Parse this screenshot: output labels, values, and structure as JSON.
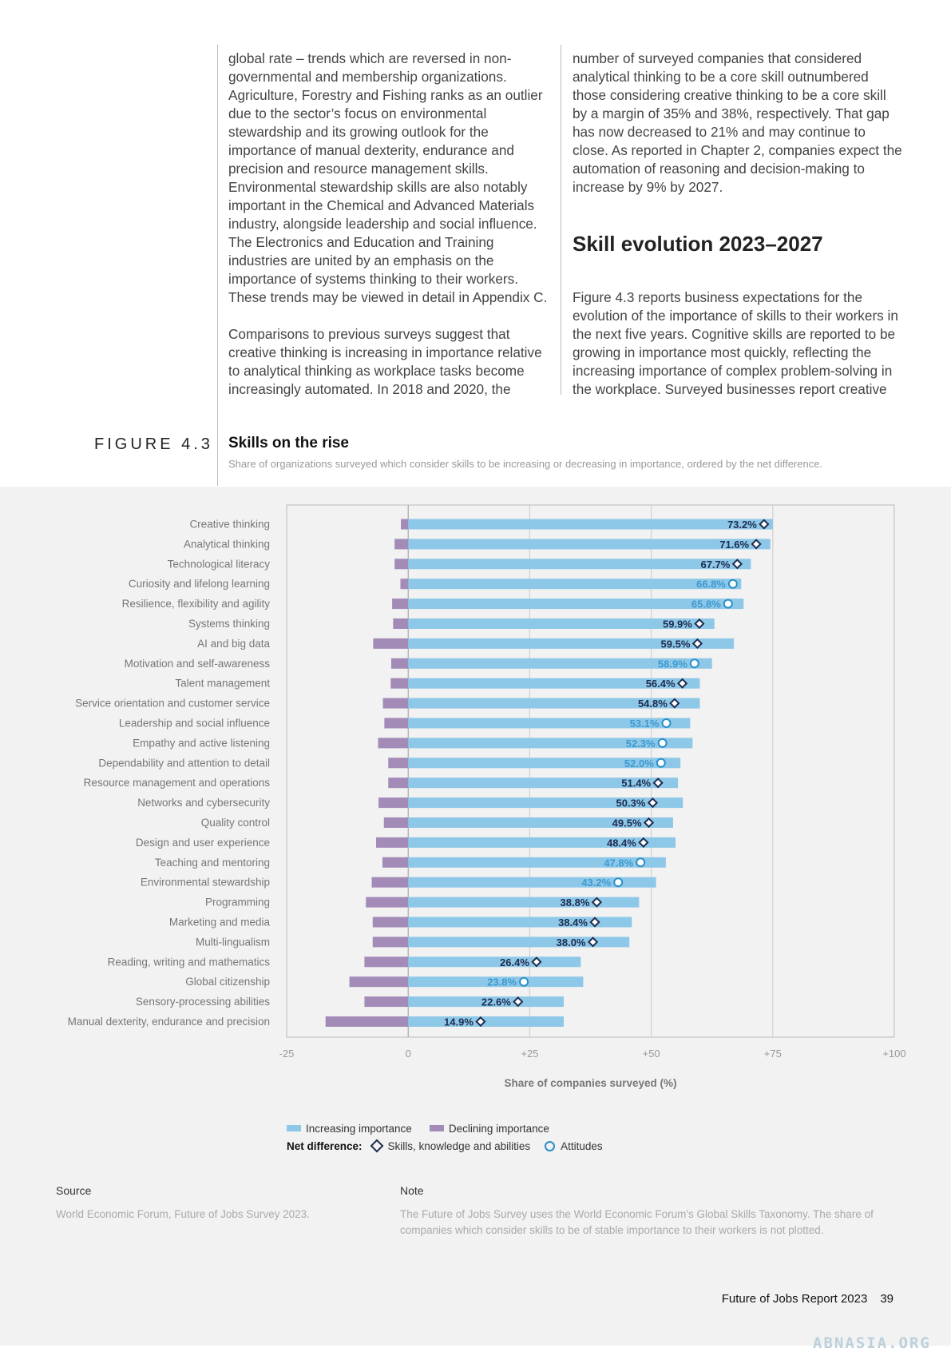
{
  "body_text": {
    "left_p1": "global rate – trends which are reversed in non-governmental and membership organizations. Agriculture, Forestry and Fishing ranks as an outlier due to the sector’s focus on environmental stewardship and its growing outlook for the importance of manual dexterity, endurance and precision and resource management skills. Environmental stewardship skills are also notably important in the Chemical and Advanced Materials industry, alongside leadership and social influence. The Electronics and Education and Training industries are united by an emphasis on the importance of systems thinking to their workers. These trends may be viewed in detail in Appendix C.",
    "left_p2": "Comparisons to previous surveys suggest that creative thinking is increasing in importance relative to analytical thinking as workplace tasks become increasingly automated. In 2018 and 2020, the",
    "right_p1": "number of surveyed companies that considered analytical thinking to be a core skill outnumbered those considering creative thinking to be a core skill by a margin of 35% and 38%, respectively. That gap has now decreased to 21% and may continue to close. As reported in Chapter 2, companies expect the automation of reasoning and decision-making to increase by 9% by 2027.",
    "section_heading": "Skill evolution 2023–2027",
    "right_p2": "Figure 4.3 reports business expectations for the evolution of the importance of skills to their workers in the next five years. Cognitive skills are reported to be growing in importance most quickly, reflecting the increasing importance of complex problem-solving in the workplace. Surveyed businesses report creative"
  },
  "figure": {
    "label": "FIGURE 4.3",
    "title": "Skills on the rise",
    "subtitle": "Share of organizations surveyed which consider skills to be increasing or decreasing in importance, ordered by the net difference."
  },
  "chart_data": {
    "type": "bar",
    "orientation": "horizontal",
    "xlabel": "Share of companies surveyed (%)",
    "xlim": [
      -25,
      100
    ],
    "xticks": [
      "-25",
      "0",
      "+25",
      "+50",
      "+75",
      "+100"
    ],
    "categories": [
      "Creative thinking",
      "Analytical thinking",
      "Technological literacy",
      "Curiosity and lifelong learning",
      "Resilience, flexibility and agility",
      "Systems thinking",
      "AI and big data",
      "Motivation and self-awareness",
      "Talent management",
      "Service orientation and customer service",
      "Leadership and social influence",
      "Empathy and active listening",
      "Dependability and attention to detail",
      "Resource management and operations",
      "Networks and cybersecurity",
      "Quality control",
      "Design and user experience",
      "Teaching and mentoring",
      "Environmental stewardship",
      "Programming",
      "Marketing and media",
      "Multi-lingualism",
      "Reading, writing and mathematics",
      "Global citizenship",
      "Sensory-processing abilities",
      "Manual dexterity, endurance and precision"
    ],
    "series": [
      {
        "name": "Increasing importance",
        "color": "#8ec8e8",
        "values": [
          75,
          74.5,
          70.5,
          68.5,
          69,
          63,
          67,
          62.5,
          60,
          60,
          58,
          58.5,
          56,
          55.5,
          56.5,
          54.5,
          55,
          53,
          51,
          47.5,
          46,
          45.5,
          35.5,
          36,
          32,
          32
        ]
      },
      {
        "name": "Declining importance",
        "color": "#a38bb8",
        "values": [
          -1.5,
          -2.8,
          -2.8,
          -1.6,
          -3.3,
          -3.1,
          -7.2,
          -3.5,
          -3.6,
          -5.2,
          -4.9,
          -6.2,
          -4.1,
          -4.1,
          -6.1,
          -5,
          -6.6,
          -5.3,
          -7.5,
          -8.7,
          -7.3,
          -7.3,
          -9,
          -12.1,
          -9,
          -17
        ]
      },
      {
        "name": "Net difference",
        "values": [
          73.2,
          71.6,
          67.7,
          66.8,
          65.8,
          59.9,
          59.5,
          58.9,
          56.4,
          54.8,
          53.1,
          52.3,
          52.0,
          51.4,
          50.3,
          49.5,
          48.4,
          47.8,
          43.2,
          38.8,
          38.4,
          38.0,
          26.4,
          23.8,
          22.6,
          14.9
        ],
        "labels": [
          "73.2%",
          "71.6%",
          "67.7%",
          "66.8%",
          "65.8%",
          "59.9%",
          "59.5%",
          "58.9%",
          "56.4%",
          "54.8%",
          "53.1%",
          "52.3%",
          "52.0%",
          "51.4%",
          "50.3%",
          "49.5%",
          "48.4%",
          "47.8%",
          "43.2%",
          "38.8%",
          "38.4%",
          "38.0%",
          "26.4%",
          "23.8%",
          "22.6%",
          "14.9%"
        ],
        "marker_type": [
          "skill",
          "skill",
          "skill",
          "attitude",
          "attitude",
          "skill",
          "skill",
          "attitude",
          "skill",
          "skill",
          "attitude",
          "attitude",
          "attitude",
          "skill",
          "skill",
          "skill",
          "skill",
          "attitude",
          "attitude",
          "skill",
          "skill",
          "skill",
          "skill",
          "attitude",
          "skill",
          "skill"
        ]
      }
    ],
    "colors": {
      "skill_marker": "#1e2c4e",
      "attitude_marker": "#2a8fc8",
      "skill_label": "#1e2c4e",
      "attitude_label": "#3d9ad0"
    }
  },
  "legend": {
    "increasing": "Increasing importance",
    "declining": "Declining importance",
    "net_label": "Net difference:",
    "skills": "Skills, knowledge and abilities",
    "attitudes": "Attitudes"
  },
  "source": {
    "heading": "Source",
    "text": "World Economic Forum, Future of Jobs Survey 2023."
  },
  "note": {
    "heading": "Note",
    "text": "The Future of Jobs Survey uses the World Economic Forum's Global Skills Taxonomy. The share of companies which consider skills to be of stable importance to their workers is not plotted."
  },
  "footer": {
    "report": "Future of Jobs Report 2023",
    "page": "39"
  },
  "watermark": "ABNASIA.ORG"
}
